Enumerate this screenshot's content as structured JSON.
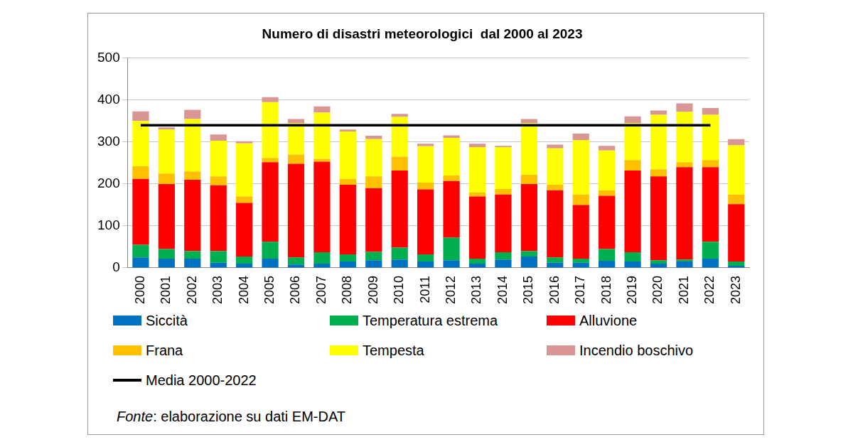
{
  "chart_data": {
    "type": "bar",
    "title": "Numero di disastri meteorologici  dal 2000 al 2023",
    "note": "Fonte: elaborazione su dati EM-DAT",
    "categories": [
      "2000",
      "2001",
      "2002",
      "2003",
      "2004",
      "2005",
      "2006",
      "2007",
      "2008",
      "2009",
      "2010",
      "2011",
      "2012",
      "2013",
      "2014",
      "2015",
      "2016",
      "2017",
      "2018",
      "2019",
      "2020",
      "2021",
      "2022",
      "2023"
    ],
    "stacked": true,
    "grid": true,
    "legend": "bottom",
    "ylim": [
      0,
      500
    ],
    "yticks": [
      0,
      100,
      200,
      300,
      400,
      500
    ],
    "series": [
      {
        "name": "Siccità",
        "color": "#0070c0",
        "values": [
          25,
          22,
          22,
          12,
          10,
          22,
          8,
          10,
          15,
          18,
          20,
          15,
          18,
          10,
          20,
          27,
          12,
          12,
          17,
          15,
          10,
          15,
          22,
          5
        ]
      },
      {
        "name": "Temperatura estrema",
        "color": "#00b050",
        "values": [
          30,
          23,
          18,
          28,
          17,
          40,
          17,
          27,
          17,
          20,
          28,
          17,
          54,
          12,
          17,
          13,
          13,
          10,
          28,
          22,
          8,
          5,
          40,
          10
        ]
      },
      {
        "name": "Alluvione",
        "color": "#ff0000",
        "values": [
          157,
          155,
          170,
          157,
          128,
          190,
          223,
          216,
          166,
          152,
          184,
          155,
          135,
          148,
          138,
          160,
          160,
          128,
          127,
          195,
          200,
          220,
          178,
          137
        ]
      },
      {
        "name": "Frana",
        "color": "#ffc000",
        "values": [
          30,
          25,
          20,
          21,
          15,
          10,
          22,
          7,
          14,
          28,
          33,
          16,
          13,
          10,
          13,
          22,
          13,
          25,
          13,
          25,
          17,
          12,
          17,
          23
        ]
      },
      {
        "name": "Tempesta",
        "color": "#ffff00",
        "values": [
          108,
          105,
          125,
          85,
          127,
          133,
          75,
          110,
          113,
          89,
          95,
          87,
          90,
          108,
          100,
          123,
          87,
          130,
          95,
          88,
          130,
          120,
          108,
          117
        ]
      },
      {
        "name": "Incendio boschivo",
        "color": "#d99694",
        "values": [
          23,
          5,
          22,
          15,
          5,
          12,
          10,
          15,
          5,
          8,
          7,
          6,
          6,
          8,
          3,
          10,
          9,
          15,
          11,
          16,
          10,
          20,
          16,
          15
        ]
      },
      {
        "name": "Media 2000-2022",
        "color": "#000000",
        "type": "line",
        "values": [
          340,
          340,
          340,
          340,
          340,
          340,
          340,
          340,
          340,
          340,
          340,
          340,
          340,
          340,
          340,
          340,
          340,
          340,
          340,
          340,
          340,
          340,
          340,
          null
        ]
      }
    ]
  }
}
